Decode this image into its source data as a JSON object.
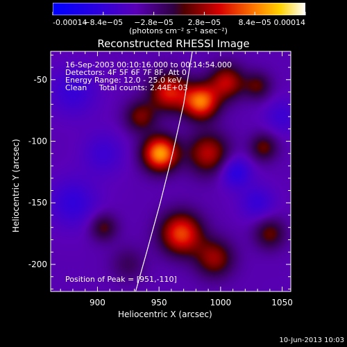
{
  "chart_data": {
    "type": "heatmap",
    "title": "Reconstructed RHESSI Image",
    "xlabel": "Heliocentric X (arcsec)",
    "ylabel": "Heliocentric Y (arcsec)",
    "xlim": [
      862,
      1057
    ],
    "ylim": [
      -222,
      -27
    ],
    "x_ticks": [
      900,
      950,
      1000,
      1050
    ],
    "x_tick_labels": [
      "900",
      "950",
      "1000",
      "1050"
    ],
    "y_ticks": [
      -50,
      -100,
      -150,
      -200
    ],
    "y_tick_labels": [
      "-50",
      "-100",
      "-150",
      "-200"
    ],
    "colorbar": {
      "range": [
        -0.00014,
        0.00014
      ],
      "tick_values": [
        -0.00014,
        -8.4e-05,
        -2.8e-05,
        2.8e-05,
        8.4e-05,
        0.00014
      ],
      "tick_labels": [
        "-0.00014",
        "−8.4e−05",
        "−2.8e−05",
        "2.8e−05",
        "8.4e−05",
        "0.00014"
      ],
      "label": "(photons cm⁻² s⁻¹ asec⁻²)"
    },
    "annotations": [
      "16-Sep-2003 00:10:16.000 to 00:14:54.000",
      "Detectors: 4F 5F 6F 7F 8F, Att 0",
      "Energy Range: 12.0 - 25.0 keV",
      "Clean     Total counts: 2.44E+03"
    ],
    "peak_label": "Position of Peak = [951,-110]",
    "peak": {
      "x": 951,
      "y": -110
    },
    "limb_points": [
      [
        977,
        -27
      ],
      [
        970,
        -70
      ],
      [
        961,
        -110
      ],
      [
        951,
        -150
      ],
      [
        940,
        -190
      ],
      [
        931,
        -222
      ]
    ],
    "sources": [
      {
        "x": 951,
        "y": -110,
        "amp": 0.00014,
        "sigma": 10
      },
      {
        "x": 984,
        "y": -68,
        "amp": 0.000125,
        "sigma": 10
      },
      {
        "x": 958,
        "y": -60,
        "amp": 9.5e-05,
        "sigma": 11
      },
      {
        "x": 1005,
        "y": -52,
        "amp": 8e-05,
        "sigma": 10
      },
      {
        "x": 968,
        "y": -175,
        "amp": 0.00011,
        "sigma": 12
      },
      {
        "x": 990,
        "y": -110,
        "amp": 8e-05,
        "sigma": 12
      },
      {
        "x": 935,
        "y": -80,
        "amp": 6e-05,
        "sigma": 9
      },
      {
        "x": 1035,
        "y": -105,
        "amp": 5.5e-05,
        "sigma": 8
      },
      {
        "x": 995,
        "y": -195,
        "amp": 7e-05,
        "sigma": 11
      },
      {
        "x": 905,
        "y": -170,
        "amp": 5e-05,
        "sigma": 8
      },
      {
        "x": 1040,
        "y": -175,
        "amp": 5.5e-05,
        "sigma": 9
      },
      {
        "x": 1030,
        "y": -55,
        "amp": 5e-05,
        "sigma": 8
      },
      {
        "x": 925,
        "y": -200,
        "amp": 3e-05,
        "sigma": 10
      },
      {
        "x": 880,
        "y": -60,
        "amp": -3.5e-05,
        "sigma": 14
      },
      {
        "x": 880,
        "y": -150,
        "amp": -4e-05,
        "sigma": 14
      },
      {
        "x": 1012,
        "y": -125,
        "amp": -5e-05,
        "sigma": 9
      },
      {
        "x": 1030,
        "y": -150,
        "amp": -3.5e-05,
        "sigma": 10
      },
      {
        "x": 905,
        "y": -110,
        "amp": -3e-05,
        "sigma": 12
      },
      {
        "x": 1050,
        "y": -80,
        "amp": -3e-05,
        "sigma": 10
      }
    ]
  },
  "footer_date": "10-Jun-2013 10:03"
}
